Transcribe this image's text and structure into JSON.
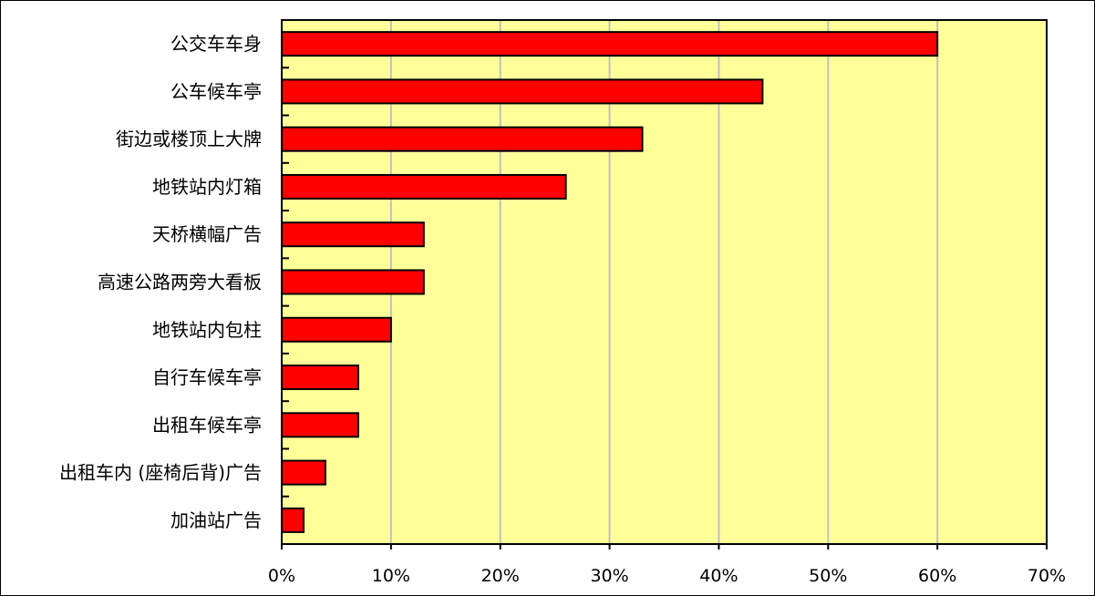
{
  "chart_data": {
    "type": "bar",
    "orientation": "horizontal",
    "title": "",
    "xlabel": "",
    "ylabel": "",
    "categories": [
      "公交车车身",
      "公车候车亭",
      "街边或楼顶上大牌",
      "地铁站内灯箱",
      "天桥横幅广告",
      "高速公路两旁大看板",
      "地铁站内包柱",
      "自行车候车亭",
      "出租车候车亭",
      "出租车内 (座椅后背)广告",
      "加油站广告"
    ],
    "values": [
      60,
      44,
      33,
      26,
      13,
      13,
      10,
      7,
      7,
      4,
      2
    ],
    "xlim": [
      0,
      70
    ],
    "xticks": [
      0,
      10,
      20,
      30,
      40,
      50,
      60,
      70
    ],
    "xtick_labels": [
      "0%",
      "10%",
      "20%",
      "30%",
      "40%",
      "50%",
      "60%",
      "70%"
    ],
    "value_unit": "%",
    "grid": "vertical",
    "legend": "none",
    "colors": {
      "bar": "#ff0000",
      "bar_stroke": "#000000",
      "plot_bg": "#ffff99",
      "grid": "#c0c0c0"
    }
  }
}
